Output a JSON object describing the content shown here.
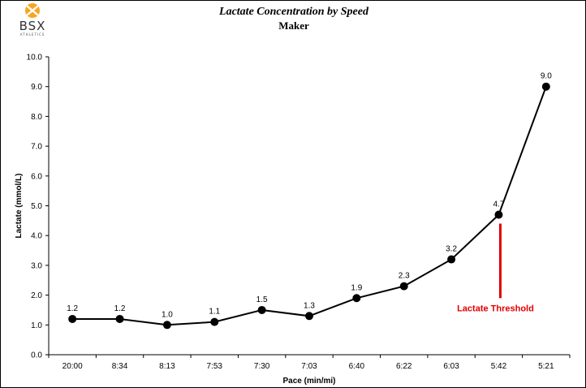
{
  "logo": {
    "text": "BSX",
    "subtext": "ATHLETICS",
    "accent_color": "#f5a623"
  },
  "chart_data": {
    "type": "line",
    "title": "Lactate Concentration by Speed",
    "subtitle": "Maker",
    "xlabel": "Pace (min/mi)",
    "ylabel": "Lactate (mmol/L)",
    "categories": [
      "20:00",
      "8:34",
      "8:13",
      "7:53",
      "7:30",
      "7:03",
      "6:40",
      "6:22",
      "6:03",
      "5:42",
      "5:21"
    ],
    "values": [
      1.2,
      1.2,
      1.0,
      1.1,
      1.5,
      1.3,
      1.9,
      2.3,
      3.2,
      4.7,
      9.0
    ],
    "data_labels": [
      "1.2",
      "1.2",
      "1.0",
      "1.1",
      "1.5",
      "1.3",
      "1.9",
      "2.3",
      "3.2",
      "4.7",
      "9.0"
    ],
    "ylim": [
      0,
      10
    ],
    "yticks": [
      "0.0",
      "1.0",
      "2.0",
      "3.0",
      "4.0",
      "5.0",
      "6.0",
      "7.0",
      "8.0",
      "9.0",
      "10.0"
    ],
    "grid": false,
    "series_color": "#000000",
    "annotation": {
      "text": "Lactate Threshold",
      "category": "5:42",
      "from": 1.9,
      "to": 4.4,
      "color": "#e00000"
    }
  }
}
